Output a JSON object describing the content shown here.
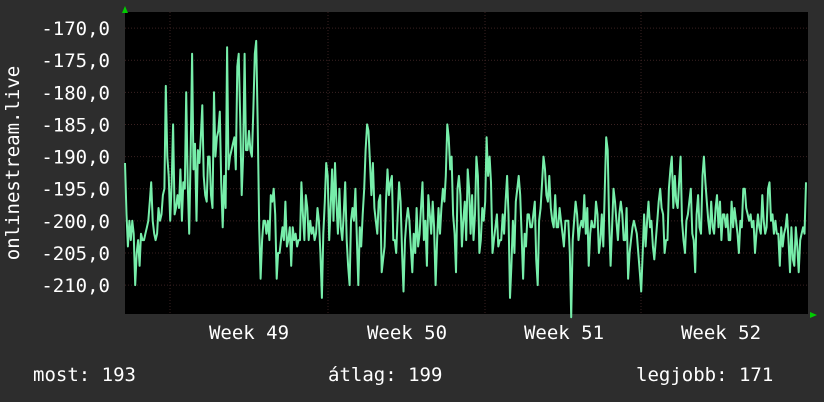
{
  "chart_data": {
    "type": "line",
    "ylabel": "onlinestream.live",
    "y_ticks": [
      "-170,0",
      "-175,0",
      "-180,0",
      "-185,0",
      "-190,0",
      "-195,0",
      "-200,0",
      "-205,0",
      "-210,0"
    ],
    "y_tick_values": [
      -170,
      -175,
      -180,
      -185,
      -190,
      -195,
      -200,
      -205,
      -210
    ],
    "ylim": [
      -214.5,
      -167.5
    ],
    "x_ticks": [
      "Week 49",
      "Week 50",
      "Week 51",
      "Week 52"
    ],
    "grid": true,
    "colors": {
      "background": "#2d2d2d",
      "plot": "#000000",
      "grid": "#3a2222",
      "line": "#77eeaa",
      "axis_arrow": "#00cc00"
    },
    "series": [
      {
        "values": [
          -191,
          -199,
          -204,
          -200,
          -203,
          -200,
          -202,
          -210,
          -205,
          -203,
          -207,
          -202,
          -203,
          -203,
          -202,
          -201,
          -200,
          -197,
          -194,
          -200,
          -202,
          -203,
          -202,
          -198,
          -200,
          -199,
          -196,
          -195,
          -179,
          -190,
          -193,
          -200,
          -194,
          -185,
          -199,
          -198,
          -196,
          -198,
          -192,
          -200,
          -194,
          -195,
          -180,
          -194,
          -202,
          -190,
          -174,
          -192,
          -188,
          -200,
          -189,
          -191,
          -187,
          -182,
          -193,
          -196,
          -197,
          -190,
          -190,
          -196,
          -198,
          -180,
          -190,
          -187,
          -186,
          -183,
          -194,
          -201,
          -193,
          -198,
          -173,
          -192,
          -190,
          -189,
          -188,
          -187,
          -192,
          -176,
          -174,
          -184,
          -196,
          -190,
          -174,
          -189,
          -189,
          -186,
          -189,
          -190,
          -183,
          -174,
          -172,
          -185,
          -201,
          -209,
          -203,
          -200,
          -200,
          -202,
          -200,
          -203,
          -196,
          -197,
          -195,
          -199,
          -209,
          -205,
          -205,
          -203,
          -201,
          -203,
          -197,
          -204,
          -203,
          -201,
          -207,
          -201,
          -203,
          -202,
          -204,
          -203,
          -203,
          -194,
          -199,
          -203,
          -196,
          -198,
          -203,
          -200,
          -202,
          -201,
          -203,
          -202,
          -198,
          -200,
          -205,
          -212,
          -202,
          -197,
          -191,
          -193,
          -203,
          -198,
          -192,
          -200,
          -191,
          -197,
          -202,
          -195,
          -201,
          -203,
          -199,
          -194,
          -203,
          -207,
          -210,
          -200,
          -198,
          -200,
          -195,
          -203,
          -210,
          -201,
          -204,
          -199,
          -195,
          -189,
          -185,
          -186,
          -191,
          -196,
          -191,
          -198,
          -200,
          -202,
          -197,
          -196,
          -208,
          -206,
          -204,
          -197,
          -192,
          -196,
          -194,
          -193,
          -203,
          -203,
          -205,
          -199,
          -194,
          -197,
          -205,
          -211,
          -203,
          -200,
          -198,
          -200,
          -204,
          -208,
          -202,
          -205,
          -198,
          -204,
          -202,
          -198,
          -194,
          -203,
          -200,
          -207,
          -196,
          -199,
          -202,
          -197,
          -201,
          -210,
          -203,
          -198,
          -202,
          -198,
          -195,
          -197,
          -193,
          -185,
          -187,
          -192,
          -190,
          -199,
          -202,
          -208,
          -195,
          -193,
          -196,
          -204,
          -200,
          -197,
          -203,
          -192,
          -195,
          -202,
          -196,
          -203,
          -199,
          -190,
          -193,
          -205,
          -203,
          -198,
          -200,
          -197,
          -187,
          -193,
          -190,
          -194,
          -205,
          -203,
          -201,
          -199,
          -204,
          -203,
          -203,
          -199,
          -202,
          -197,
          -193,
          -199,
          -212,
          -207,
          -200,
          -205,
          -197,
          -195,
          -193,
          -196,
          -202,
          -209,
          -202,
          -204,
          -199,
          -199,
          -201,
          -201,
          -199,
          -197,
          -206,
          -210,
          -200,
          -198,
          -194,
          -190,
          -192,
          -196,
          -197,
          -193,
          -198,
          -200,
          -201,
          -196,
          -201,
          -201,
          -198,
          -200,
          -202,
          -204,
          -200,
          -200,
          -200,
          -205,
          -215,
          -203,
          -200,
          -197,
          -199,
          -203,
          -201,
          -200,
          -201,
          -196,
          -202,
          -198,
          -207,
          -202,
          -200,
          -201,
          -201,
          -197,
          -199,
          -205,
          -203,
          -199,
          -204,
          -195,
          -187,
          -189,
          -200,
          -207,
          -201,
          -195,
          -197,
          -200,
          -203,
          -199,
          -197,
          -199,
          -203,
          -203,
          -198,
          -209,
          -205,
          -203,
          -201,
          -200,
          -201,
          -202,
          -205,
          -208,
          -211,
          -205,
          -199,
          -204,
          -200,
          -197,
          -201,
          -200,
          -204,
          -206,
          -203,
          -200,
          -197,
          -195,
          -198,
          -199,
          -205,
          -203,
          -203,
          -195,
          -192,
          -190,
          -198,
          -193,
          -197,
          -198,
          -194,
          -190,
          -200,
          -203,
          -205,
          -200,
          -199,
          -197,
          -195,
          -202,
          -203,
          -208,
          -199,
          -196,
          -201,
          -202,
          -193,
          -190,
          -194,
          -197,
          -200,
          -202,
          -197,
          -201,
          -202,
          -198,
          -196,
          -201,
          -197,
          -203,
          -199,
          -199,
          -201,
          -199,
          -203,
          -203,
          -197,
          -201,
          -198,
          -200,
          -202,
          -205,
          -200,
          -201,
          -195,
          -195,
          -198,
          -199,
          -200,
          -199,
          -201,
          -200,
          -205,
          -202,
          -199,
          -201,
          -202,
          -196,
          -200,
          -202,
          -201,
          -195,
          -194,
          -200,
          -199,
          -202,
          -200,
          -202,
          -202,
          -207,
          -201,
          -204,
          -202,
          -201,
          -199,
          -203,
          -208,
          -201,
          -206,
          -207,
          -201,
          -204,
          -208,
          -203,
          -202,
          -201,
          -202,
          -194
        ]
      }
    ]
  },
  "legend": {
    "most": "most: 193",
    "atlag": "átlag: 199",
    "legjobb": "legjobb: 171"
  }
}
